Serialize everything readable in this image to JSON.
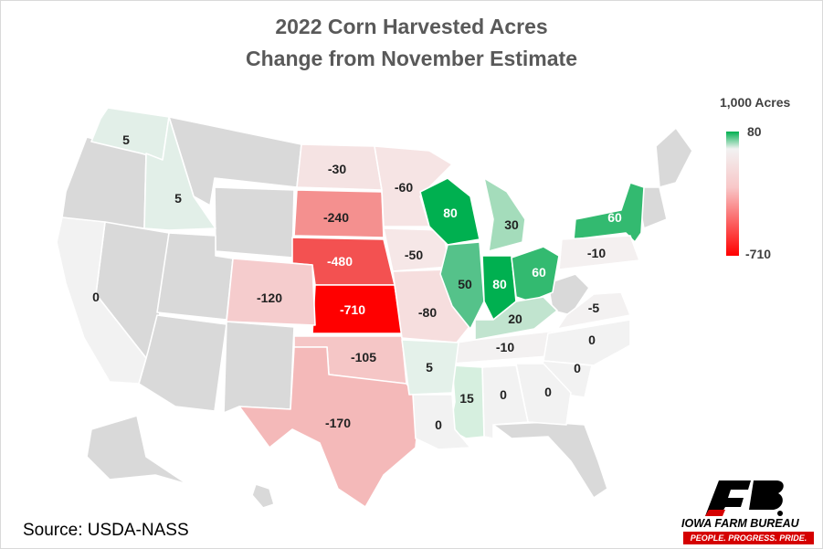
{
  "title_line1": "2022 Corn Harvested Acres",
  "title_line2": "Change from November Estimate",
  "legend": {
    "title": "1,000 Acres",
    "max": "80",
    "min": "-710",
    "max_value": 80,
    "min_value": -710,
    "colors": {
      "max": "#00b050",
      "zero": "#f2f2f2",
      "min": "#ff0000",
      "no_data": "#d9d9d9"
    }
  },
  "source": "Source: USDA-NASS",
  "logo": {
    "name": "IOWA FARM BUREAU",
    "tagline": "PEOPLE. PROGRESS. PRIDE."
  },
  "states": {
    "WA": "5",
    "ID": "5",
    "CA": "0",
    "ND": "-30",
    "SD": "-240",
    "NE": "-480",
    "KS": "-710",
    "CO": "-120",
    "TX": "-170",
    "OK": "-105",
    "MN": "-60",
    "IA": "-50",
    "MO": "-80",
    "WI": "80",
    "IL": "50",
    "IN": "80",
    "OH": "60",
    "MI": "30",
    "KY": "20",
    "NY": "60",
    "PA": "-10",
    "VA": "-5",
    "TN": "-10",
    "NC": "0",
    "SC": "0",
    "GA": "0",
    "AL": "0",
    "MS": "15",
    "AR": "5",
    "LA": "0"
  }
}
